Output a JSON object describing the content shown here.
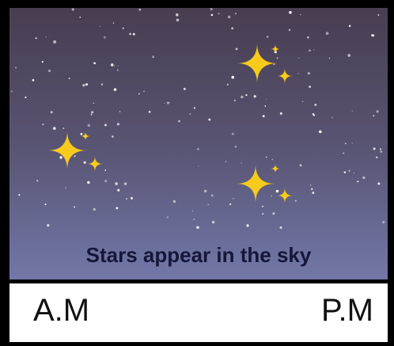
{
  "caption": "Stars appear in the sky",
  "labels": {
    "left": "A.M",
    "right": "P.M"
  }
}
